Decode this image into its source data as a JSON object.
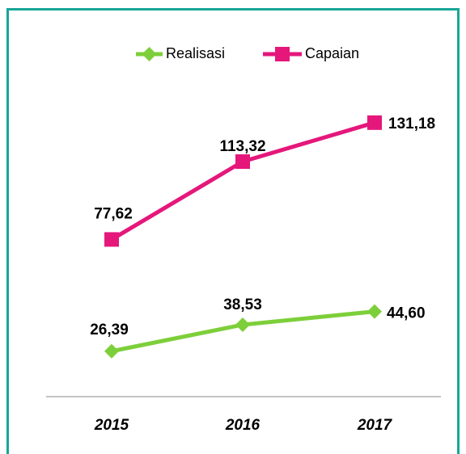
{
  "chart_data": {
    "type": "line",
    "categories": [
      "2015",
      "2016",
      "2017"
    ],
    "series": [
      {
        "name": "Realisasi",
        "color": "#7dcf3a",
        "values": [
          26.39,
          38.53,
          44.6
        ],
        "value_labels": [
          "26,39",
          "38,53",
          "44,60"
        ]
      },
      {
        "name": "Capaian",
        "color": "#e5177b",
        "values": [
          77.62,
          113.32,
          131.18
        ],
        "value_labels": [
          "77,62",
          "113,32",
          "131,18"
        ]
      }
    ],
    "ylim": [
      0,
      150
    ]
  }
}
